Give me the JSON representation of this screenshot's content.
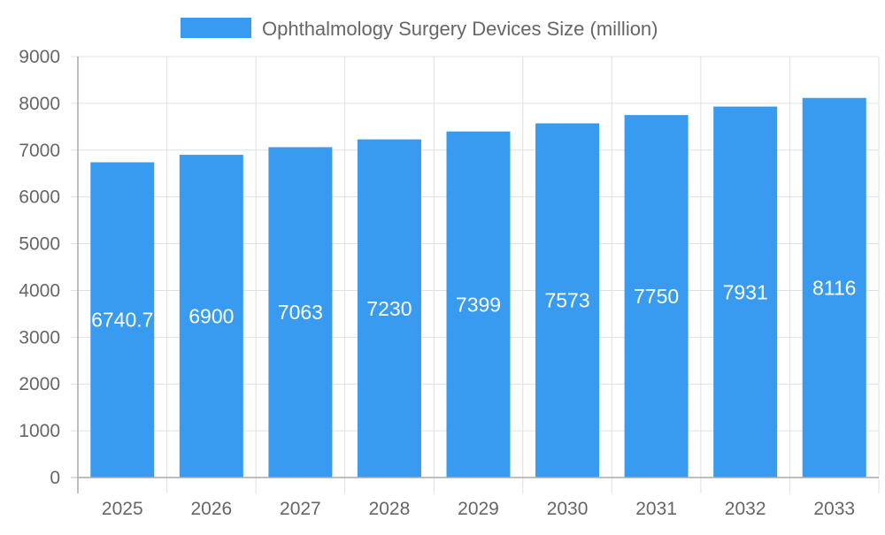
{
  "chart_data": {
    "type": "bar",
    "title": "",
    "xlabel": "",
    "ylabel": "",
    "categories": [
      "2025",
      "2026",
      "2027",
      "2028",
      "2029",
      "2030",
      "2031",
      "2032",
      "2033"
    ],
    "series": [
      {
        "name": "Ophthalmology Surgery Devices Size (million)",
        "values": [
          6740.7,
          6900,
          7063,
          7230,
          7399,
          7573,
          7750,
          7931,
          8116
        ],
        "color": "#389bef"
      }
    ],
    "data_labels": [
      "6740.7",
      "6900",
      "7063",
      "7230",
      "7399",
      "7573",
      "7750",
      "7931",
      "8116"
    ],
    "ylim": [
      0,
      9000
    ],
    "yticks": [
      "0",
      "1000",
      "2000",
      "3000",
      "4000",
      "5000",
      "6000",
      "7000",
      "8000",
      "9000"
    ],
    "grid": true,
    "legend": "top"
  }
}
